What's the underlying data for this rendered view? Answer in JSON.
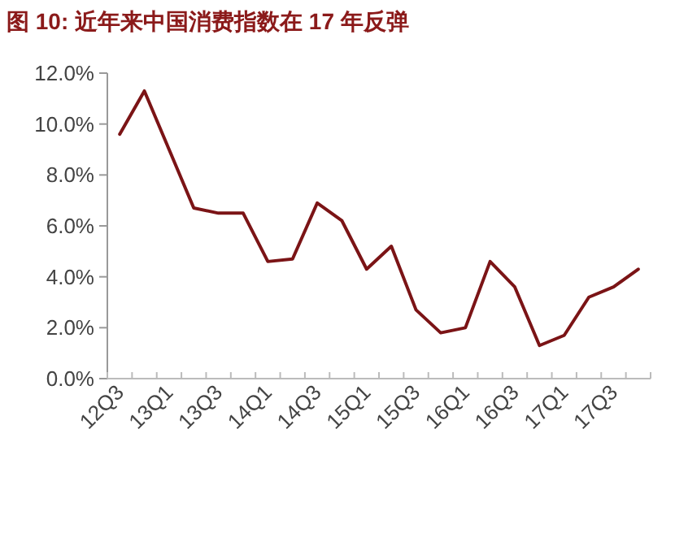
{
  "chart_data": {
    "type": "line",
    "title": "图 10:  近年来中国消费指数在 17 年反弹",
    "categories": [
      "12Q3",
      null,
      "13Q1",
      null,
      "13Q3",
      null,
      "14Q1",
      null,
      "14Q3",
      null,
      "15Q1",
      null,
      "15Q3",
      null,
      "16Q1",
      null,
      "16Q3",
      null,
      "17Q1",
      null,
      "17Q3",
      null
    ],
    "series": [
      {
        "color": "#7b1416",
        "values": [
          9.6,
          11.3,
          9.0,
          6.7,
          6.5,
          6.5,
          4.6,
          4.7,
          6.9,
          6.2,
          4.3,
          5.2,
          2.7,
          1.8,
          2.0,
          4.6,
          3.6,
          1.3,
          1.7,
          3.2,
          3.6,
          4.3
        ]
      }
    ],
    "ylim": [
      0,
      12
    ],
    "yticks": [
      {
        "value": 0,
        "label": "0.0%"
      },
      {
        "value": 2,
        "label": "2.0%"
      },
      {
        "value": 4,
        "label": "4.0%"
      },
      {
        "value": 6,
        "label": "6.0%"
      },
      {
        "value": 8,
        "label": "8.0%"
      },
      {
        "value": 10,
        "label": "10.0%"
      },
      {
        "value": 12,
        "label": "12.0%"
      }
    ],
    "grid": false,
    "marker": "none",
    "line_style": "solid"
  }
}
